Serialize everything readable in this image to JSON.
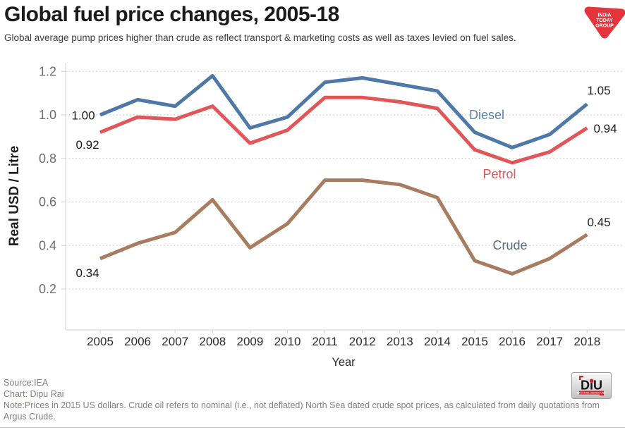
{
  "header": {
    "title": "Global fuel price changes, 2005-18",
    "subtitle": "Global average pump prices higher than crude as reflect  transport & marketing costs as well as taxes levied on fuel sales.",
    "logo": {
      "name": "India Today Group",
      "lines": [
        "INDIA",
        "TODAY",
        "GROUP"
      ],
      "color": "#e5343b"
    }
  },
  "chart_data": {
    "type": "line",
    "title": "Global fuel price changes, 2005-18",
    "x": [
      2005,
      2006,
      2007,
      2008,
      2009,
      2010,
      2011,
      2012,
      2013,
      2014,
      2015,
      2016,
      2017,
      2018
    ],
    "xlabel": "Year",
    "ylabel": "Real USD / Litre",
    "ylim": [
      0.1,
      1.28
    ],
    "yticks": [
      0.2,
      0.4,
      0.6,
      0.8,
      1.0,
      1.2
    ],
    "grid": "horizontal-dotted",
    "legend_position": "inline-labels",
    "series": [
      {
        "name": "Diesel",
        "color": "#4e78a8",
        "label_color": "#5c82ab",
        "values": [
          1.0,
          1.07,
          1.04,
          1.18,
          0.94,
          0.99,
          1.15,
          1.17,
          1.14,
          1.11,
          0.92,
          0.85,
          0.91,
          1.05
        ]
      },
      {
        "name": "Petrol",
        "color": "#e15759",
        "label_color": "#e15759",
        "values": [
          0.92,
          0.99,
          0.98,
          1.04,
          0.87,
          0.93,
          1.08,
          1.08,
          1.06,
          1.03,
          0.84,
          0.78,
          0.83,
          0.94
        ]
      },
      {
        "name": "Crude",
        "color": "#a87c5f",
        "label_color": "#5b6b7c",
        "values": [
          0.34,
          0.41,
          0.46,
          0.61,
          0.39,
          0.5,
          0.7,
          0.7,
          0.68,
          0.62,
          0.33,
          0.27,
          0.34,
          0.45
        ]
      }
    ],
    "annotations": [
      {
        "text": "1.00",
        "series": "Diesel",
        "year": 2005,
        "value": 1.0
      },
      {
        "text": "0.92",
        "series": "Petrol",
        "year": 2005,
        "value": 0.92
      },
      {
        "text": "0.34",
        "series": "Crude",
        "year": 2005,
        "value": 0.34
      },
      {
        "text": "1.05",
        "series": "Diesel",
        "year": 2018,
        "value": 1.05
      },
      {
        "text": "0.94",
        "series": "Petrol",
        "year": 2018,
        "value": 0.94
      },
      {
        "text": "0.45",
        "series": "Crude",
        "year": 2018,
        "value": 0.45
      }
    ]
  },
  "footer": {
    "source": "Source:IEA",
    "chart_credit": "Chart: Dipu Rai",
    "note": "Note:Prices in 2015 US dollars. Crude oil refers to nominal (i.e., not deflated) North Sea dated crude spot prices, as calculated from daily quotations from Argus Crude.",
    "diu": {
      "name": "DiU",
      "tagline": "DATA INTELLIGENCE UNIT"
    }
  }
}
